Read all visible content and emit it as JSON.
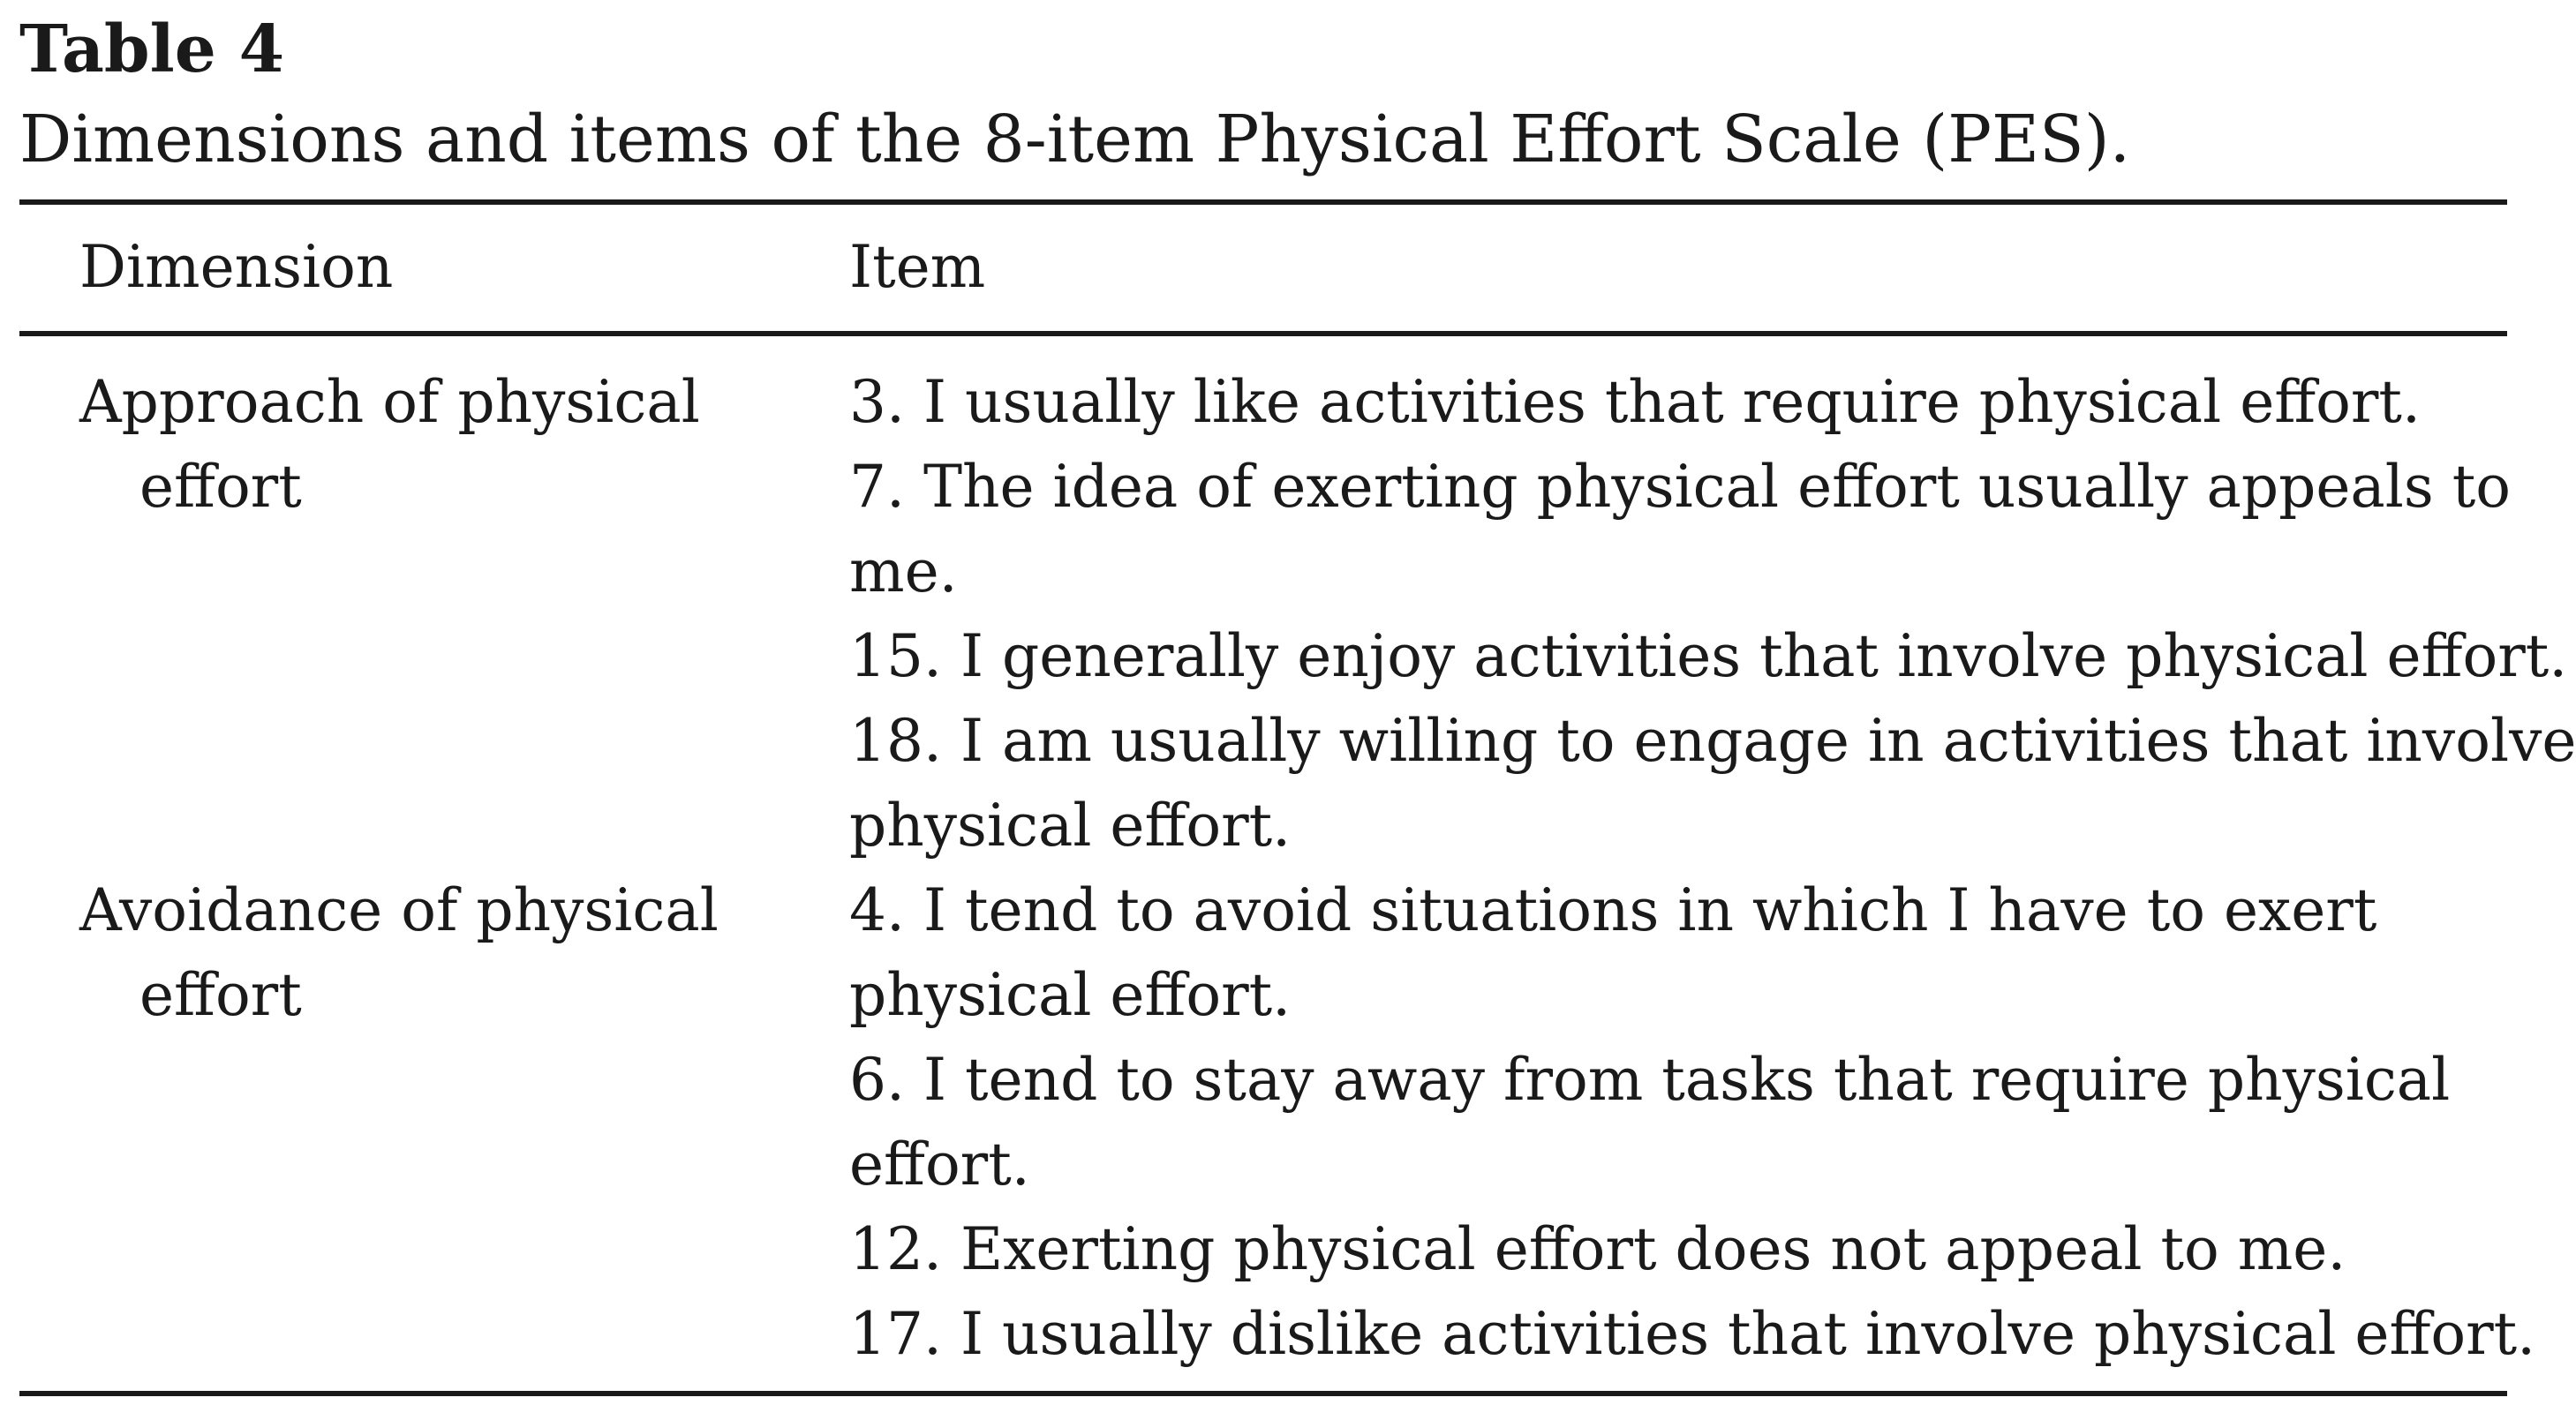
{
  "table": {
    "label": "Table 4",
    "caption": "Dimensions and items of the 8-item Physical Effort Scale (PES).",
    "headers": {
      "dimension": "Dimension",
      "item": "Item"
    },
    "rows": [
      {
        "dimension_line1": "Approach of physical",
        "dimension_line2": "effort",
        "item_lines": [
          "3. I usually like activities that require physical effort.",
          "7. The idea of exerting physical effort usually appeals to",
          "me.",
          "15. I generally enjoy activities that involve physical effort.",
          "18. I am usually willing to engage in activities that involve",
          "physical effort."
        ]
      },
      {
        "dimension_line1": "Avoidance of physical",
        "dimension_line2": "effort",
        "item_lines": [
          "4. I tend to avoid situations in which I have to exert",
          "physical effort.",
          "6. I tend to stay away from tasks that require physical",
          "effort.",
          "12. Exerting physical effort does not appeal to me.",
          "17. I usually dislike activities that involve physical effort."
        ]
      }
    ]
  }
}
